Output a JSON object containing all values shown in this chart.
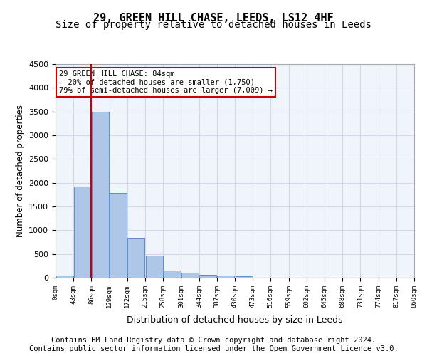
{
  "title1": "29, GREEN HILL CHASE, LEEDS, LS12 4HF",
  "title2": "Size of property relative to detached houses in Leeds",
  "xlabel": "Distribution of detached houses by size in Leeds",
  "ylabel": "Number of detached properties",
  "bar_values": [
    50,
    1920,
    3500,
    1790,
    840,
    460,
    155,
    100,
    60,
    50,
    35,
    0,
    0,
    0,
    0,
    0,
    0,
    0,
    0,
    0
  ],
  "bin_labels": [
    "0sqm",
    "43sqm",
    "86sqm",
    "129sqm",
    "172sqm",
    "215sqm",
    "258sqm",
    "301sqm",
    "344sqm",
    "387sqm",
    "430sqm",
    "473sqm",
    "516sqm",
    "559sqm",
    "602sqm",
    "645sqm",
    "688sqm",
    "731sqm",
    "774sqm",
    "817sqm"
  ],
  "all_xtick_labels": [
    "0sqm",
    "43sqm",
    "86sqm",
    "129sqm",
    "172sqm",
    "215sqm",
    "258sqm",
    "301sqm",
    "344sqm",
    "387sqm",
    "430sqm",
    "473sqm",
    "516sqm",
    "559sqm",
    "602sqm",
    "645sqm",
    "688sqm",
    "731sqm",
    "774sqm",
    "817sqm",
    "860sqm"
  ],
  "bar_color": "#aec6e8",
  "bar_edge_color": "#5b8fc9",
  "grid_color": "#d0d8e8",
  "background_color": "#f0f4fb",
  "vline_color": "#cc0000",
  "annotation_text": "29 GREEN HILL CHASE: 84sqm\n← 20% of detached houses are smaller (1,750)\n79% of semi-detached houses are larger (7,009) →",
  "annotation_box_color": "#cc0000",
  "ylim": [
    0,
    4500
  ],
  "yticks": [
    0,
    500,
    1000,
    1500,
    2000,
    2500,
    3000,
    3500,
    4000,
    4500
  ],
  "footer1": "Contains HM Land Registry data © Crown copyright and database right 2024.",
  "footer2": "Contains public sector information licensed under the Open Government Licence v3.0.",
  "title1_fontsize": 11,
  "title2_fontsize": 10,
  "footer_fontsize": 7.5
}
